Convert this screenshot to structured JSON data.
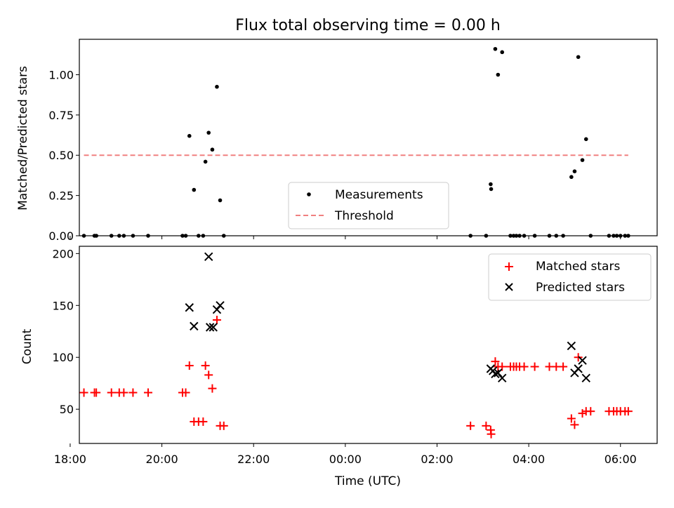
{
  "chart_data": [
    {
      "type": "scatter",
      "title": "Flux total observing time = 0.00 h",
      "xlabel": "",
      "ylabel": "Matched/Predicted stars",
      "ylim": [
        0,
        1.22
      ],
      "xlim": [
        -5.8,
        6.8
      ],
      "x_unit": "hours relative to 00:00 UTC",
      "y_ticks": [
        0.0,
        0.25,
        0.5,
        0.75,
        1.0
      ],
      "y_tick_labels": [
        "0.00",
        "0.25",
        "0.50",
        "0.75",
        "1.00"
      ],
      "legend_position": "lower-center",
      "series": [
        {
          "name": "Measurements",
          "marker": "dot",
          "color": "#000000",
          "points": [
            [
              -5.7,
              0
            ],
            [
              -5.47,
              0
            ],
            [
              -5.43,
              0
            ],
            [
              -5.1,
              0
            ],
            [
              -4.93,
              0
            ],
            [
              -4.83,
              0
            ],
            [
              -4.63,
              0
            ],
            [
              -4.3,
              0
            ],
            [
              -3.55,
              0
            ],
            [
              -3.48,
              0
            ],
            [
              -3.4,
              0.62
            ],
            [
              -3.3,
              0.285
            ],
            [
              -3.2,
              0
            ],
            [
              -3.1,
              0
            ],
            [
              -3.05,
              0.46
            ],
            [
              -2.98,
              0.64
            ],
            [
              -2.9,
              0.535
            ],
            [
              -2.8,
              0.925
            ],
            [
              -2.73,
              0.22
            ],
            [
              -2.65,
              0
            ],
            [
              2.73,
              0
            ],
            [
              3.07,
              0
            ],
            [
              3.17,
              0.32
            ],
            [
              3.18,
              0.29
            ],
            [
              3.27,
              1.16
            ],
            [
              3.33,
              1.0
            ],
            [
              3.42,
              1.14
            ],
            [
              3.6,
              0
            ],
            [
              3.67,
              0
            ],
            [
              3.73,
              0
            ],
            [
              3.8,
              0
            ],
            [
              3.9,
              0
            ],
            [
              4.13,
              0
            ],
            [
              4.45,
              0
            ],
            [
              4.6,
              0
            ],
            [
              4.75,
              0
            ],
            [
              4.93,
              0.365
            ],
            [
              5.0,
              0.4
            ],
            [
              5.08,
              1.11
            ],
            [
              5.17,
              0.47
            ],
            [
              5.25,
              0.6
            ],
            [
              5.35,
              0
            ],
            [
              5.75,
              0
            ],
            [
              5.85,
              0
            ],
            [
              5.92,
              0
            ],
            [
              6.0,
              0
            ],
            [
              6.1,
              0
            ],
            [
              6.17,
              0
            ]
          ]
        },
        {
          "name": "Threshold",
          "line_style": "dashed",
          "color": "#f08080",
          "x": [
            -5.7,
            6.17
          ],
          "y": [
            0.5,
            0.5
          ]
        }
      ]
    },
    {
      "type": "scatter",
      "title": "",
      "xlabel": "Time (UTC)",
      "ylabel": "Count",
      "ylim": [
        17,
        207
      ],
      "xlim": [
        -5.8,
        6.8
      ],
      "x_unit": "hours relative to 00:00 UTC",
      "y_ticks": [
        50,
        100,
        150,
        200
      ],
      "x_ticks": [
        -6,
        -4,
        -2,
        0,
        2,
        4,
        6
      ],
      "x_tick_labels": [
        "18:00",
        "20:00",
        "22:00",
        "00:00",
        "02:00",
        "04:00",
        "06:00"
      ],
      "legend_position": "top-right",
      "series": [
        {
          "name": "Matched stars",
          "marker": "plus",
          "color": "#ff0000",
          "points": [
            [
              -5.7,
              66
            ],
            [
              -5.47,
              66
            ],
            [
              -5.43,
              66
            ],
            [
              -5.1,
              66
            ],
            [
              -4.93,
              66
            ],
            [
              -4.83,
              66
            ],
            [
              -4.63,
              66
            ],
            [
              -4.3,
              66
            ],
            [
              -3.55,
              66
            ],
            [
              -3.48,
              66
            ],
            [
              -3.4,
              92
            ],
            [
              -3.3,
              38
            ],
            [
              -3.2,
              38
            ],
            [
              -3.1,
              38
            ],
            [
              -3.05,
              92
            ],
            [
              -2.98,
              83
            ],
            [
              -2.9,
              70
            ],
            [
              -2.8,
              136
            ],
            [
              -2.73,
              34
            ],
            [
              -2.65,
              34
            ],
            [
              2.73,
              34
            ],
            [
              3.07,
              34
            ],
            [
              3.17,
              30
            ],
            [
              3.18,
              26
            ],
            [
              3.27,
              96
            ],
            [
              3.33,
              91
            ],
            [
              3.42,
              91
            ],
            [
              3.6,
              91
            ],
            [
              3.67,
              91
            ],
            [
              3.73,
              91
            ],
            [
              3.8,
              91
            ],
            [
              3.9,
              91
            ],
            [
              4.13,
              91
            ],
            [
              4.45,
              91
            ],
            [
              4.6,
              91
            ],
            [
              4.75,
              91
            ],
            [
              4.93,
              41
            ],
            [
              5.0,
              35
            ],
            [
              5.08,
              100
            ],
            [
              5.17,
              46
            ],
            [
              5.25,
              48
            ],
            [
              5.35,
              48
            ],
            [
              5.75,
              48
            ],
            [
              5.85,
              48
            ],
            [
              5.92,
              48
            ],
            [
              6.0,
              48
            ],
            [
              6.1,
              48
            ],
            [
              6.17,
              48
            ]
          ]
        },
        {
          "name": "Predicted stars",
          "marker": "x",
          "color": "#000000",
          "points": [
            [
              -3.4,
              148
            ],
            [
              -3.3,
              130
            ],
            [
              -2.98,
              197
            ],
            [
              -2.95,
              129
            ],
            [
              -2.88,
              129
            ],
            [
              -2.8,
              146
            ],
            [
              -2.73,
              150
            ],
            [
              3.17,
              89
            ],
            [
              3.22,
              87
            ],
            [
              3.27,
              84
            ],
            [
              3.33,
              85
            ],
            [
              3.42,
              80
            ],
            [
              4.93,
              111
            ],
            [
              5.0,
              85
            ],
            [
              5.08,
              89
            ],
            [
              5.17,
              97
            ],
            [
              5.25,
              80
            ]
          ]
        }
      ]
    }
  ]
}
